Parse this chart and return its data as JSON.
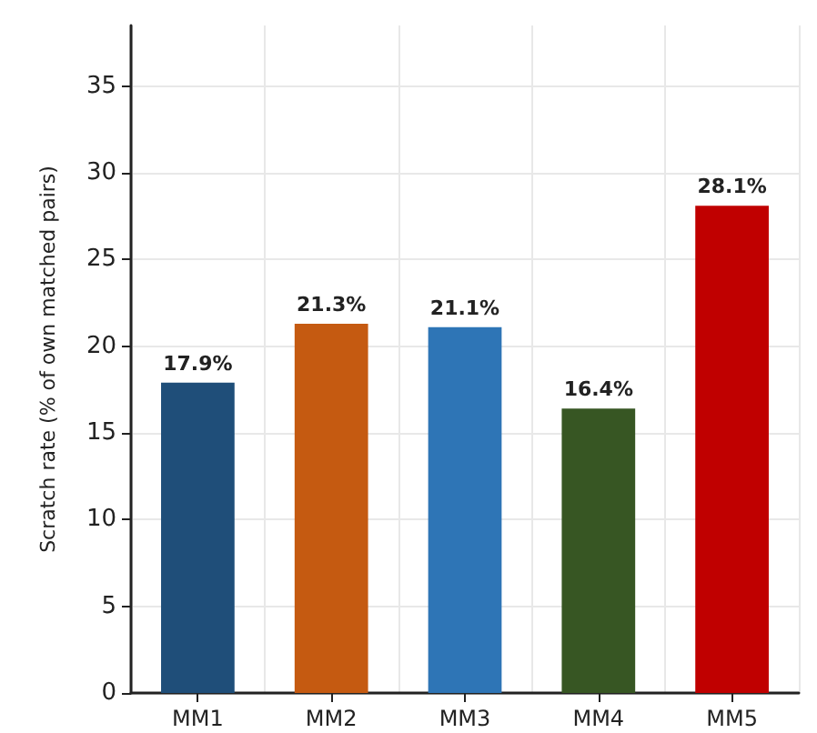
{
  "chart_data": {
    "type": "bar",
    "ylabel": "Scratch rate (% of own matched pairs)",
    "categories": [
      "MM1",
      "MM2",
      "MM3",
      "MM4",
      "MM5"
    ],
    "values": [
      17.9,
      21.3,
      21.1,
      16.4,
      28.1
    ],
    "colors": [
      "#1f4e79",
      "#c55a11",
      "#2e75b6",
      "#375623",
      "#c00000"
    ],
    "value_labels": [
      "17.9%",
      "21.3%",
      "21.1%",
      "16.4%",
      "28.1%"
    ],
    "ylim": [
      0,
      38.5
    ],
    "yticks": [
      0,
      5,
      10,
      15,
      20,
      25,
      30,
      35
    ],
    "grid": true
  }
}
